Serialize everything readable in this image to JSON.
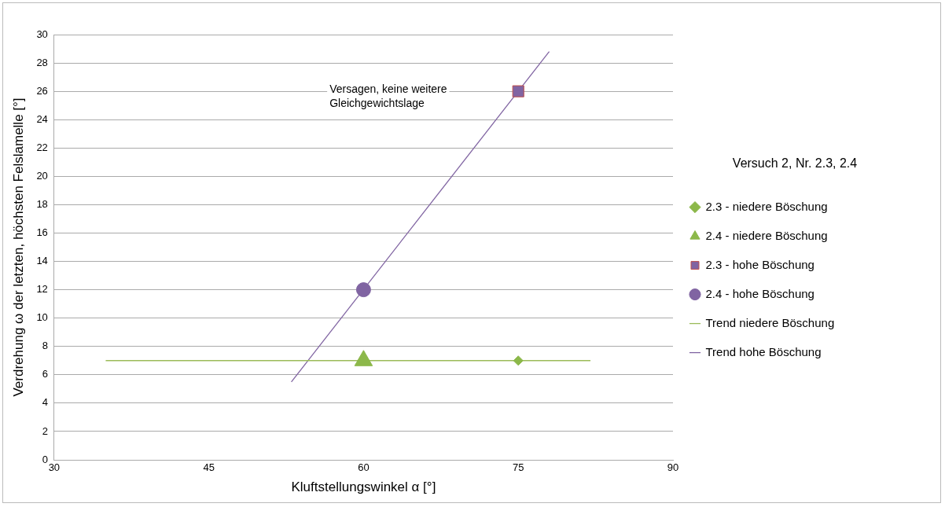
{
  "chart_data": {
    "type": "scatter",
    "xlabel": "Kluftstellungswinkel α [°]",
    "ylabel": "Verdrehung ω der letzten, höchsten Felslamelle [°]",
    "legend_title": "Versuch 2, Nr. 2.3, 2.4",
    "legend": "right",
    "grid": "y",
    "xlim": [
      30,
      90
    ],
    "xticks": [
      30,
      45,
      60,
      75,
      90
    ],
    "ylim": [
      0,
      30
    ],
    "yticks": [
      0,
      2,
      4,
      6,
      8,
      10,
      12,
      14,
      16,
      18,
      20,
      22,
      24,
      26,
      28,
      30
    ],
    "series": [
      {
        "name": "2.3 - niedere Böschung",
        "type": "scatter",
        "marker": "diamond",
        "color": "#8cb84a",
        "x": [
          75
        ],
        "values": [
          7
        ]
      },
      {
        "name": "2.4 - niedere Böschung",
        "type": "scatter",
        "marker": "triangle",
        "color": "#8cb84a",
        "x": [
          60
        ],
        "values": [
          7
        ]
      },
      {
        "name": "2.3 - hohe Böschung",
        "type": "scatter",
        "marker": "square",
        "color": "#8064a2",
        "x": [
          75
        ],
        "values": [
          26
        ]
      },
      {
        "name": "2.4 - hohe Böschung",
        "type": "scatter",
        "marker": "circle",
        "color": "#8064a2",
        "x": [
          60
        ],
        "values": [
          12
        ]
      },
      {
        "name": "Trend niedere Böschung",
        "type": "line",
        "marker": "none",
        "color": "#9bbb59",
        "x": [
          35,
          82
        ],
        "values": [
          7,
          7
        ]
      },
      {
        "name": "Trend hohe Böschung",
        "type": "line",
        "marker": "none",
        "color": "#8064a2",
        "x": [
          53,
          78
        ],
        "values": [
          5.5,
          28.8
        ]
      }
    ],
    "annotations": [
      "Versagen, keine weitere Gleichgewichtslage"
    ]
  }
}
